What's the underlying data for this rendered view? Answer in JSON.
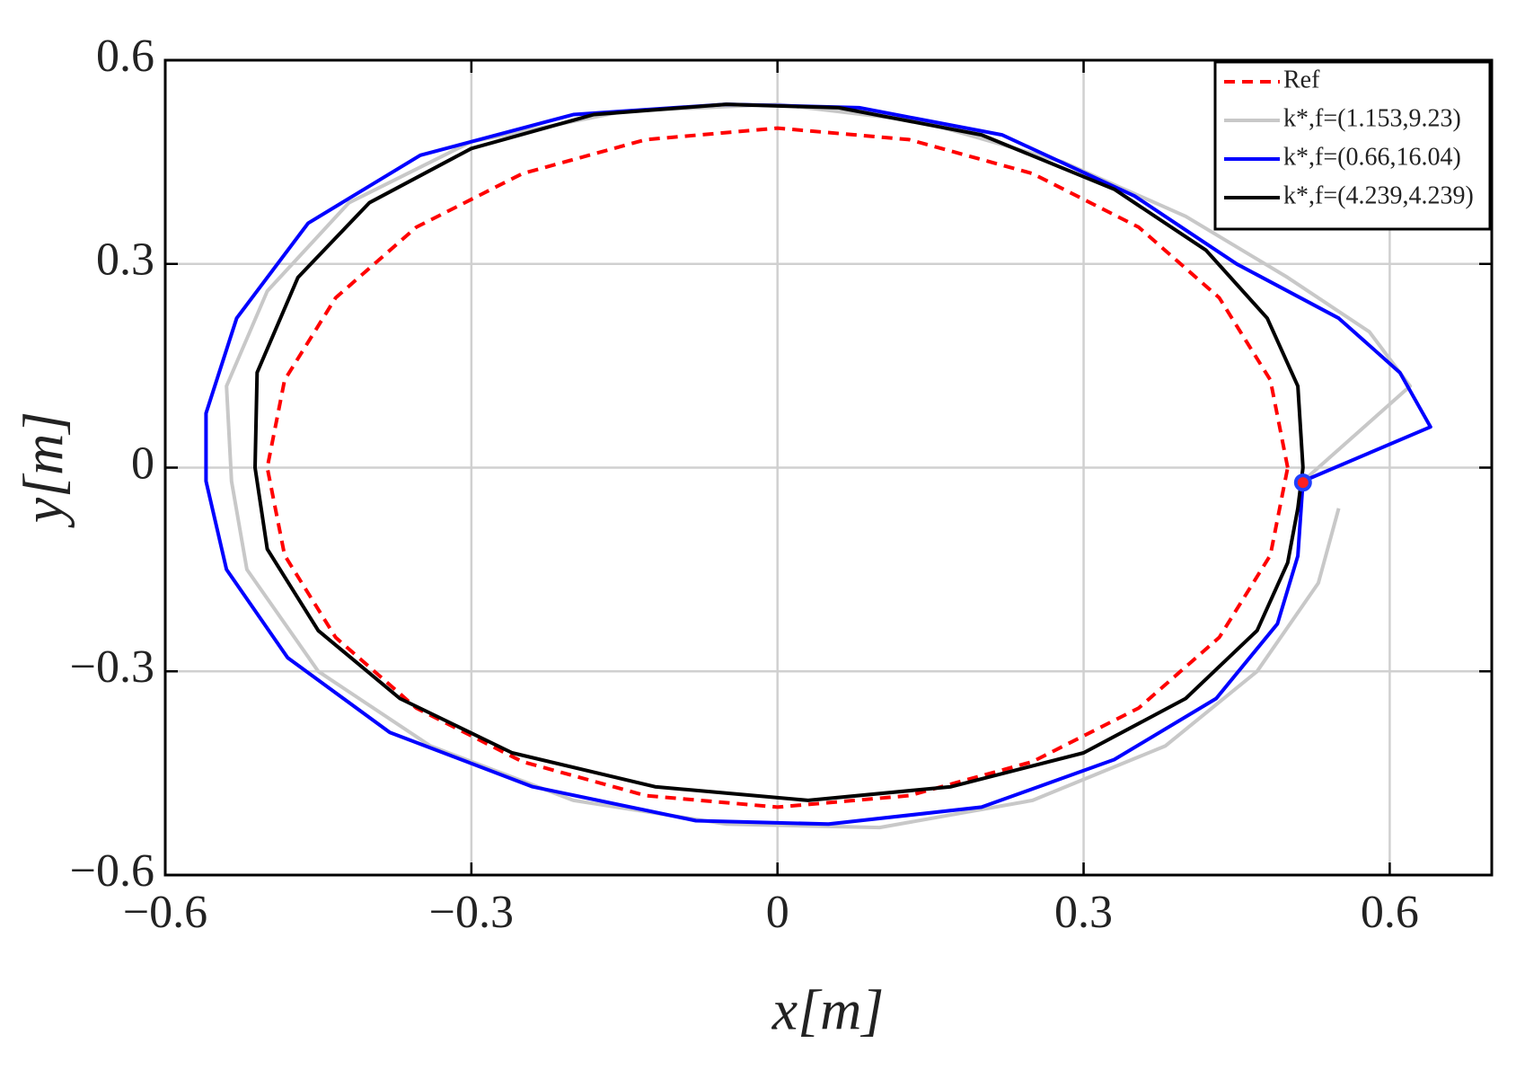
{
  "chart_data": {
    "type": "line",
    "xlabel": "x[m]",
    "ylabel": "y[m]",
    "xlim": [
      -0.6,
      0.7
    ],
    "ylim": [
      -0.6,
      0.6
    ],
    "xticks": [
      {
        "value": -0.6,
        "label": "−0.6"
      },
      {
        "value": -0.3,
        "label": "−0.3"
      },
      0,
      0.3,
      0.6
    ],
    "yticks": [
      {
        "value": -0.6,
        "label": "−0.6"
      },
      {
        "value": -0.3,
        "label": "−0.3"
      },
      0,
      0.3,
      0.6
    ],
    "grid": true,
    "legend": "upper right",
    "series": [
      {
        "name": "Ref",
        "color": "#ff0000",
        "dash": true,
        "x": [
          0.5,
          0.483,
          0.433,
          0.354,
          0.25,
          0.129,
          0,
          -0.129,
          -0.25,
          -0.354,
          -0.433,
          -0.483,
          -0.5,
          -0.483,
          -0.433,
          -0.354,
          -0.25,
          -0.129,
          0,
          0.129,
          0.25,
          0.354,
          0.433,
          0.483,
          0.5
        ],
        "y": [
          0,
          0.129,
          0.25,
          0.354,
          0.433,
          0.483,
          0.5,
          0.483,
          0.433,
          0.354,
          0.25,
          0.129,
          0,
          -0.129,
          -0.25,
          -0.354,
          -0.433,
          -0.483,
          -0.5,
          -0.483,
          -0.433,
          -0.354,
          -0.25,
          -0.129,
          0
        ]
      },
      {
        "name": "k*,f=(1.153,9.23)",
        "color": "#c8c8c8",
        "x": [
          0.515,
          0.62,
          0.58,
          0.5,
          0.4,
          0.28,
          0.14,
          0,
          -0.15,
          -0.3,
          -0.42,
          -0.5,
          -0.54,
          -0.535,
          -0.52,
          -0.45,
          -0.34,
          -0.2,
          -0.05,
          0.1,
          0.25,
          0.38,
          0.47,
          0.53,
          0.55
        ],
        "y": [
          -0.02,
          0.12,
          0.2,
          0.28,
          0.37,
          0.45,
          0.51,
          0.535,
          0.525,
          0.48,
          0.39,
          0.26,
          0.12,
          -0.02,
          -0.15,
          -0.3,
          -0.41,
          -0.49,
          -0.525,
          -0.53,
          -0.49,
          -0.41,
          -0.3,
          -0.17,
          -0.06
        ]
      },
      {
        "name": "k*,f=(0.66,16.04)",
        "color": "#0000ff",
        "x": [
          0.515,
          0.64,
          0.61,
          0.55,
          0.45,
          0.35,
          0.22,
          0.08,
          -0.05,
          -0.2,
          -0.35,
          -0.46,
          -0.53,
          -0.56,
          -0.56,
          -0.54,
          -0.48,
          -0.38,
          -0.24,
          -0.08,
          0.05,
          0.2,
          0.33,
          0.43,
          0.49,
          0.51,
          0.515
        ],
        "y": [
          -0.02,
          0.06,
          0.14,
          0.22,
          0.3,
          0.4,
          0.49,
          0.53,
          0.535,
          0.52,
          0.46,
          0.36,
          0.22,
          0.08,
          -0.02,
          -0.15,
          -0.28,
          -0.39,
          -0.47,
          -0.52,
          -0.525,
          -0.5,
          -0.43,
          -0.34,
          -0.23,
          -0.13,
          -0.02
        ]
      },
      {
        "name": "k*,f=(4.239,4.239)",
        "color": "#000000",
        "x": [
          0.51,
          0.515,
          0.51,
          0.48,
          0.42,
          0.33,
          0.2,
          0.06,
          -0.05,
          -0.18,
          -0.3,
          -0.4,
          -0.47,
          -0.51,
          -0.512,
          -0.5,
          -0.45,
          -0.37,
          -0.26,
          -0.12,
          0.03,
          0.17,
          0.3,
          0.4,
          0.47,
          0.5,
          0.51
        ],
        "y": [
          -0.06,
          0,
          0.12,
          0.22,
          0.32,
          0.41,
          0.49,
          0.53,
          0.535,
          0.52,
          0.47,
          0.39,
          0.28,
          0.14,
          0,
          -0.12,
          -0.24,
          -0.34,
          -0.42,
          -0.47,
          -0.49,
          -0.47,
          -0.42,
          -0.34,
          -0.24,
          -0.14,
          -0.06
        ]
      }
    ],
    "start_point": {
      "x": 0.515,
      "y": -0.022,
      "color": "#ff2020",
      "edge": "#2040ff"
    }
  }
}
